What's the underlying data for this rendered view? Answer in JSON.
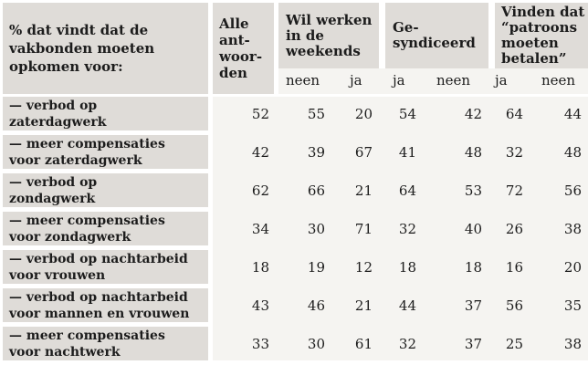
{
  "colors": {
    "header_cell_bg": "#dfdcd8",
    "data_area_bg": "#f5f4f1",
    "gutter": "#ffffff",
    "text": "#1c1c1c"
  },
  "table": {
    "corner_header": "% dat vindt dat de\nvakbonden moeten\nopkomen voor:",
    "col_groups": [
      {
        "label": "Alle\nant-\nwoor-\nden",
        "subcols": []
      },
      {
        "label": "Wil werken\nin de\nweekends",
        "subcols": [
          "neen",
          "ja"
        ]
      },
      {
        "label": "Ge-\nsyndiceerd",
        "subcols": [
          "ja",
          "neen"
        ]
      },
      {
        "label": "Vinden dat\n“patroons\nmoeten\nbetalen”",
        "subcols": [
          "ja",
          "neen"
        ]
      }
    ],
    "subheaders": [
      "neen",
      "ja",
      "ja",
      "neen",
      "ja",
      "neen"
    ],
    "rows": [
      {
        "label": "— verbod op\nzaterdagwerk",
        "values": [
          52,
          55,
          20,
          54,
          42,
          64,
          44
        ]
      },
      {
        "label": "— meer compensaties\nvoor zaterdagwerk",
        "values": [
          42,
          39,
          67,
          41,
          48,
          32,
          48
        ]
      },
      {
        "label": "— verbod op\nzondagwerk",
        "values": [
          62,
          66,
          21,
          64,
          53,
          72,
          56
        ]
      },
      {
        "label": "— meer compensaties\nvoor zondagwerk",
        "values": [
          34,
          30,
          71,
          32,
          40,
          26,
          38
        ]
      },
      {
        "label": "— verbod op nachtarbeid\nvoor vrouwen",
        "values": [
          18,
          19,
          12,
          18,
          18,
          16,
          20
        ]
      },
      {
        "label": "— verbod op nachtarbeid\nvoor mannen en vrouwen",
        "values": [
          43,
          46,
          21,
          44,
          37,
          56,
          35
        ]
      },
      {
        "label": "— meer compensaties\nvoor nachtwerk",
        "values": [
          33,
          30,
          61,
          32,
          37,
          25,
          38
        ]
      }
    ]
  }
}
